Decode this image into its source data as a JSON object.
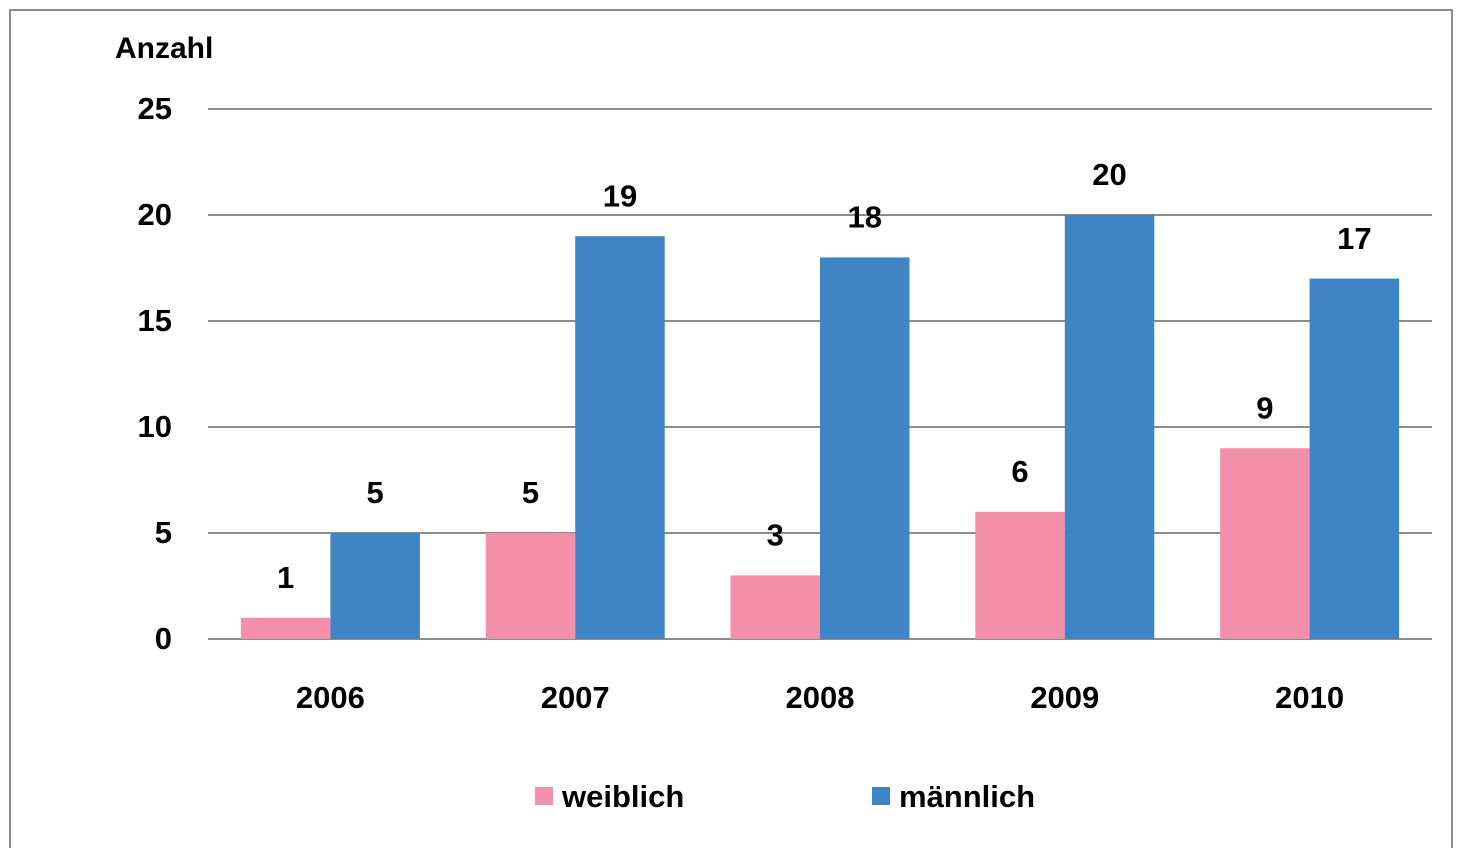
{
  "chart_data": {
    "type": "bar",
    "y_axis_label": "Anzahl",
    "categories": [
      "2006",
      "2007",
      "2008",
      "2009",
      "2010"
    ],
    "series": [
      {
        "name": "weiblich",
        "color": "#f48fab",
        "values": [
          1,
          5,
          3,
          6,
          9
        ]
      },
      {
        "name": "männlich",
        "color": "#3f84c4",
        "values": [
          5,
          19,
          18,
          20,
          17
        ]
      }
    ],
    "ylim": [
      0,
      25
    ],
    "yticks": [
      0,
      5,
      10,
      15,
      20,
      25
    ],
    "grid": true,
    "legend": "bottom"
  }
}
